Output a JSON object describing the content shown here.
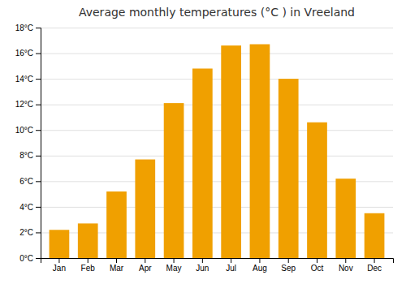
{
  "chart_data": {
    "type": "bar",
    "title": "Average monthly temperatures (°C ) in Vreeland",
    "categories": [
      "Jan",
      "Feb",
      "Mar",
      "Apr",
      "May",
      "Jun",
      "Jul",
      "Aug",
      "Sep",
      "Oct",
      "Nov",
      "Dec"
    ],
    "values": [
      2.2,
      2.7,
      5.2,
      7.7,
      12.1,
      14.8,
      16.6,
      16.7,
      14.0,
      10.6,
      6.2,
      3.5
    ],
    "color": "#F0A000",
    "ylim": [
      0,
      18
    ],
    "yticks": [
      {
        "value": 0,
        "label": "0°C"
      },
      {
        "value": 2,
        "label": "2°C"
      },
      {
        "value": 4,
        "label": "4°C"
      },
      {
        "value": 6,
        "label": "6°C"
      },
      {
        "value": 8,
        "label": "8°C"
      },
      {
        "value": 10,
        "label": "10°C"
      },
      {
        "value": 12,
        "label": "12°C"
      },
      {
        "value": 14,
        "label": "14°C"
      },
      {
        "value": 16,
        "label": "16°C"
      },
      {
        "value": 18,
        "label": "18°C"
      }
    ],
    "grid": true
  }
}
